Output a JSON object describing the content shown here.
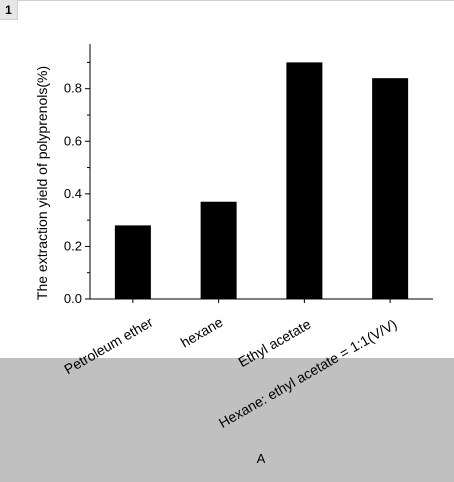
{
  "panel_number": "1",
  "panel_letter": "A",
  "chart_data": {
    "type": "bar",
    "categories": [
      "Petroleum ether",
      "hexane",
      "Ethyl acetate",
      "Hexane: ethyl acetate = 1:1(V/V)"
    ],
    "values": [
      0.28,
      0.37,
      0.9,
      0.84
    ],
    "title": "",
    "xlabel": "",
    "ylabel": "The extraction yield of polyprenols(%)",
    "ylim": [
      0,
      0.97
    ],
    "yticks": [
      0.0,
      0.2,
      0.4,
      0.6,
      0.8
    ],
    "ytick_labels": [
      "0.0",
      "0.2",
      "0.4",
      "0.6",
      "0.8"
    ],
    "bar_color": "#000000",
    "grid": false,
    "legend": "none"
  },
  "colors": {
    "background": "#ffffff",
    "lower_band": "#c0c0c0",
    "badge": "#e6e6e6"
  }
}
